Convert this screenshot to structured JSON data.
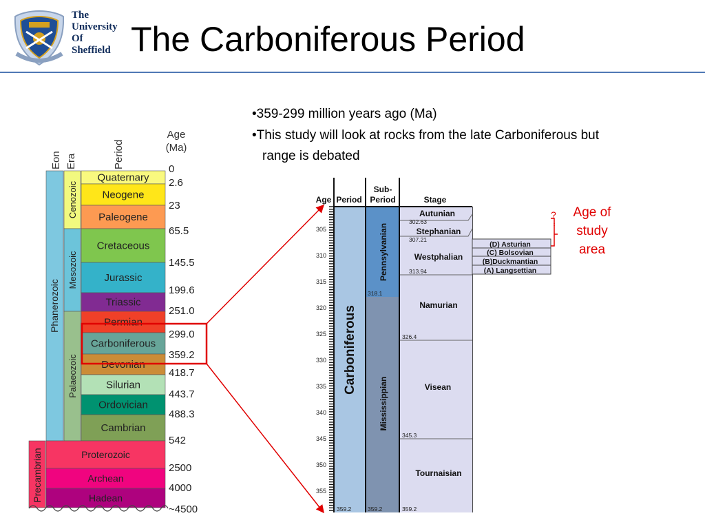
{
  "slide": {
    "title": "The Carboniferous Period",
    "logo_lines": [
      "The",
      "University",
      "Of",
      "Sheffield"
    ],
    "bullets": [
      "•359-299 million years ago (Ma)",
      "•This study will look at rocks from the late Carboniferous but",
      "range is debated"
    ],
    "study_label_lines": [
      "Age of",
      "study",
      "area"
    ],
    "question_mark": "?"
  },
  "colors": {
    "accent_line": "#4f78b5",
    "highlight_red": "#e00000",
    "university_navy": "#0f2b5a"
  },
  "left_chart": {
    "headers": {
      "eon": "Eon",
      "era": "Era",
      "period": "Period",
      "age_line1": "Age",
      "age_line2": "(Ma)"
    },
    "eons": [
      "Phanerozoic",
      "Precambrian"
    ],
    "eras": [
      "Cenozoic",
      "Mesozoic",
      "Palaeozoic"
    ],
    "periods": [
      {
        "name": "Quaternary",
        "color": "#f9f97f"
      },
      {
        "name": "Neogene",
        "color": "#ffe619"
      },
      {
        "name": "Paleogene",
        "color": "#fd9a52"
      },
      {
        "name": "Cretaceous",
        "color": "#7fc64e"
      },
      {
        "name": "Jurassic",
        "color": "#34b2c9"
      },
      {
        "name": "Triassic",
        "color": "#812b92"
      },
      {
        "name": "Permian",
        "color": "#f04028"
      },
      {
        "name": "Carboniferous",
        "color": "#67a599"
      },
      {
        "name": "Devonian",
        "color": "#cb8c37"
      },
      {
        "name": "Silurian",
        "color": "#b3e1b6"
      },
      {
        "name": "Ordovician",
        "color": "#009270"
      },
      {
        "name": "Cambrian",
        "color": "#7fa056"
      },
      {
        "name": "Proterozoic",
        "color": "#f73563"
      },
      {
        "name": "Archean",
        "color": "#f0047f"
      },
      {
        "name": "Hadean",
        "color": "#ae027e"
      }
    ],
    "ages": [
      "0",
      "2.6",
      "23",
      "65.5",
      "145.5",
      "199.6",
      "251.0",
      "299.0",
      "359.2",
      "418.7",
      "443.7",
      "488.3",
      "542",
      "2500",
      "4000",
      "~4500"
    ]
  },
  "right_chart": {
    "headers": {
      "age": "Age",
      "period": "Period",
      "subperiod_line1": "Sub-",
      "subperiod_line2": "Period",
      "stage": "Stage"
    },
    "period_name": "Carboniferous",
    "subperiods": [
      "Pennsylvanian",
      "Mississippian"
    ],
    "stages": [
      "Autunian",
      "Stephanian",
      "Westphalian",
      "Namurian",
      "Visean",
      "Tournaisian"
    ],
    "substages": [
      "(D) Asturian",
      "(C) Bolsovian",
      "(B)Duckmantian",
      "(A) Langsettian"
    ],
    "axis_ticks": [
      "305",
      "310",
      "315",
      "320",
      "325",
      "330",
      "335",
      "340",
      "345",
      "350",
      "355"
    ],
    "boundary_ages": [
      "302.63",
      "307.21",
      "313.94",
      "318.1",
      "326.4",
      "345.3",
      "359.2",
      "359.2",
      "359.2"
    ]
  }
}
